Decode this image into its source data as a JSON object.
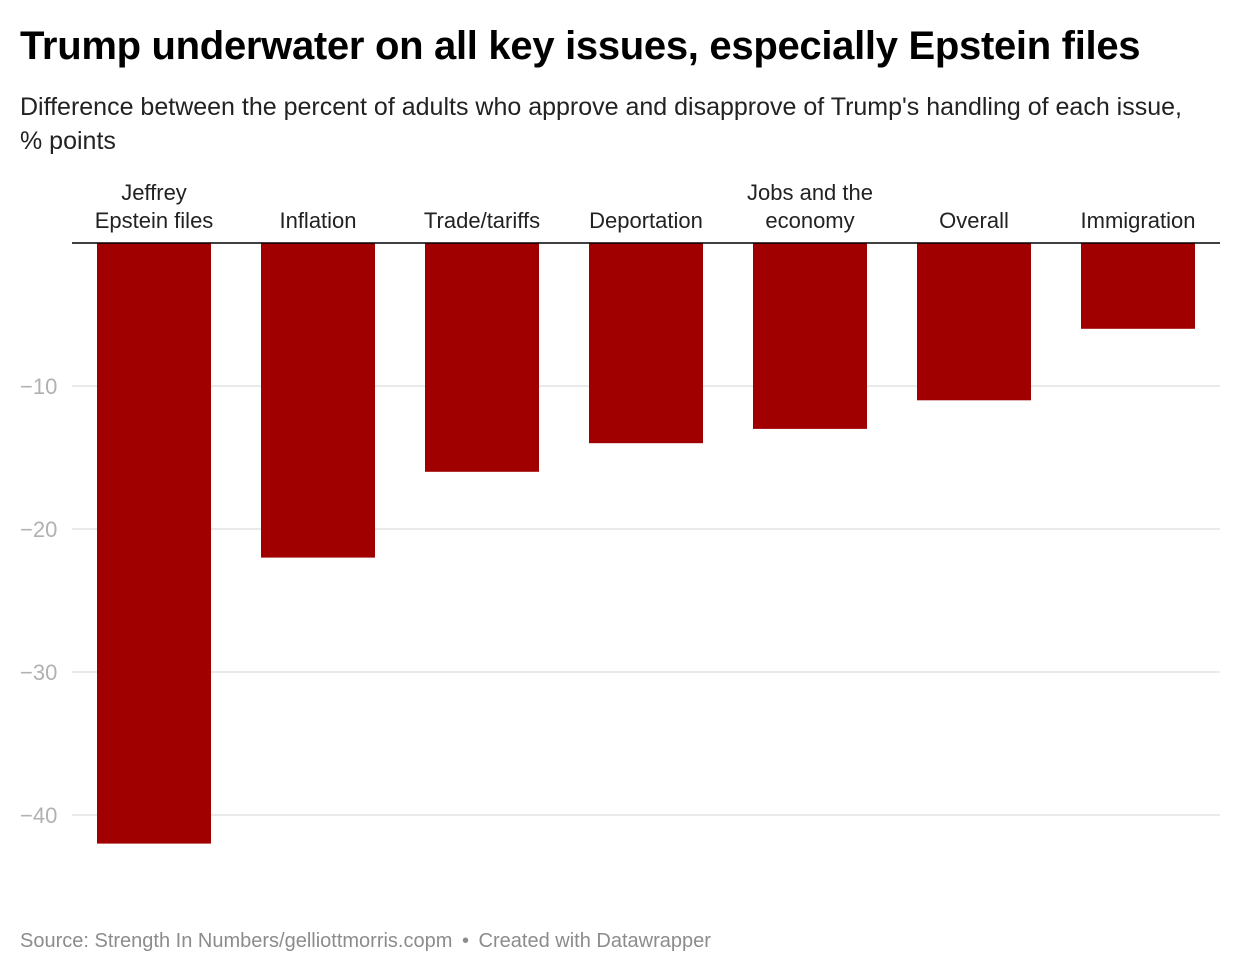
{
  "header": {
    "title": "Trump underwater on all key issues, especially Epstein files",
    "subtitle": "Difference between the percent of adults who approve and disapprove of Trump's handling of each issue, % points"
  },
  "chart_data": {
    "type": "bar",
    "title": "Trump underwater on all key issues, especially Epstein files",
    "subtitle": "Difference between the percent of adults who approve and disapprove of Trump's handling of each issue, % points",
    "categories": [
      [
        "Jeffrey",
        "Epstein files"
      ],
      [
        "Inflation"
      ],
      [
        "Trade/tariffs"
      ],
      [
        "Deportation"
      ],
      [
        "Jobs and the",
        "economy"
      ],
      [
        "Overall"
      ],
      [
        "Immigration"
      ]
    ],
    "values": [
      -42,
      -22,
      -16,
      -14,
      -13,
      -11,
      -6
    ],
    "ylim": [
      -45,
      0
    ],
    "yticks": [
      -10,
      -20,
      -30,
      -40
    ],
    "ytick_labels": [
      "−10",
      "−20",
      "−30",
      "−40"
    ],
    "xlabel": "",
    "ylabel": "",
    "grid": true,
    "bar_color": "#a10000",
    "grid_color": "#e4e4e4",
    "baseline_color": "#000000",
    "tick_label_color": "#b1b1b1"
  },
  "footer": {
    "source": "Source: Strength In Numbers/gelliottmorris.copm",
    "separator": "•",
    "credit": "Created with Datawrapper"
  }
}
